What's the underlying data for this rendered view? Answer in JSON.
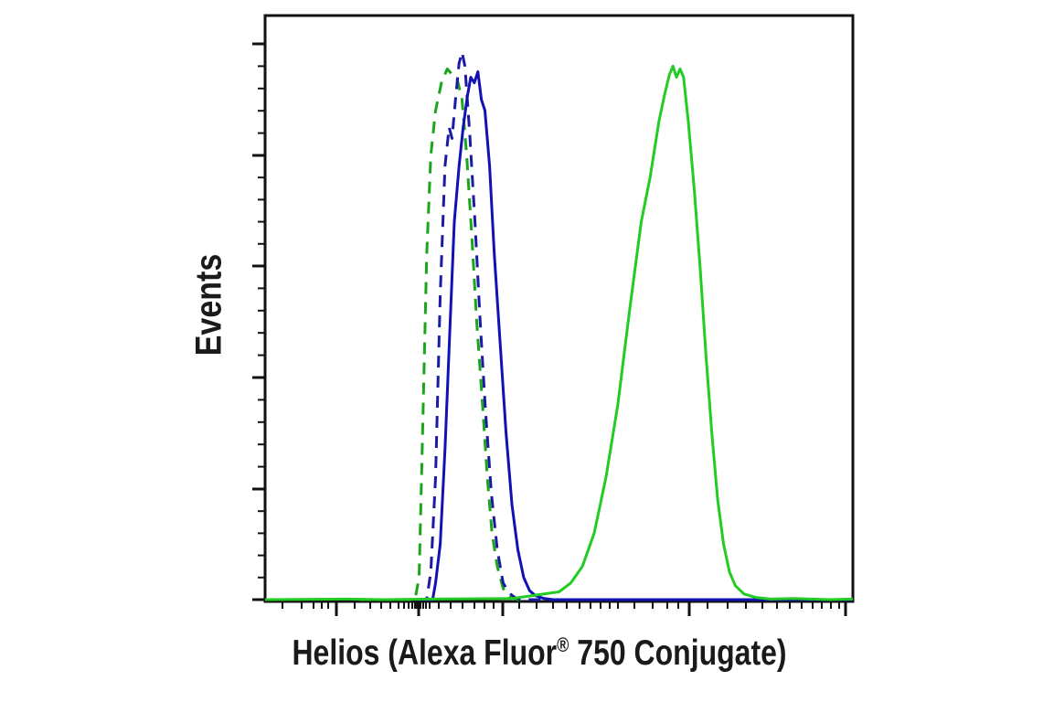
{
  "chart_data": {
    "type": "line",
    "title": "",
    "xlabel": "Helios (Alexa Fluor",
    "xlabel_sup": "®",
    "xlabel_rest": " 750 Conjugate)",
    "ylabel": "Events",
    "x_scale": "log (biexponential flow cytometry axis, tick labels not printed)",
    "grid": false,
    "legend": "none",
    "series": [
      {
        "color": "#1aa51a",
        "dash": "dashed",
        "points": [
          [
            0.16,
            0
          ],
          [
            0.255,
            0
          ],
          [
            0.262,
            0.04
          ],
          [
            0.268,
            0.3
          ],
          [
            0.275,
            0.62
          ],
          [
            0.282,
            0.8
          ],
          [
            0.29,
            0.88
          ],
          [
            0.3,
            0.93
          ],
          [
            0.31,
            0.955
          ],
          [
            0.318,
            0.945
          ],
          [
            0.326,
            0.94
          ],
          [
            0.335,
            0.9
          ],
          [
            0.343,
            0.8
          ],
          [
            0.352,
            0.65
          ],
          [
            0.36,
            0.5
          ],
          [
            0.37,
            0.35
          ],
          [
            0.378,
            0.22
          ],
          [
            0.386,
            0.12
          ],
          [
            0.395,
            0.06
          ],
          [
            0.405,
            0.02
          ],
          [
            0.415,
            0.005
          ],
          [
            0.43,
            0
          ],
          [
            0.55,
            0
          ]
        ]
      },
      {
        "color": "#1a1aa5",
        "dash": "dashed",
        "points": [
          [
            0.26,
            0
          ],
          [
            0.275,
            0
          ],
          [
            0.282,
            0.05
          ],
          [
            0.29,
            0.22
          ],
          [
            0.298,
            0.55
          ],
          [
            0.306,
            0.78
          ],
          [
            0.313,
            0.85
          ],
          [
            0.318,
            0.83
          ],
          [
            0.324,
            0.9
          ],
          [
            0.33,
            0.965
          ],
          [
            0.335,
            0.985
          ],
          [
            0.34,
            0.96
          ],
          [
            0.348,
            0.84
          ],
          [
            0.357,
            0.68
          ],
          [
            0.366,
            0.5
          ],
          [
            0.375,
            0.34
          ],
          [
            0.385,
            0.19
          ],
          [
            0.395,
            0.09
          ],
          [
            0.405,
            0.03
          ],
          [
            0.415,
            0.012
          ],
          [
            0.425,
            0.004
          ],
          [
            0.435,
            0
          ],
          [
            0.55,
            0
          ]
        ]
      },
      {
        "color": "#1111b5",
        "dash": "solid",
        "points": [
          [
            0.265,
            0
          ],
          [
            0.285,
            0
          ],
          [
            0.29,
            0.03
          ],
          [
            0.298,
            0.1
          ],
          [
            0.306,
            0.27
          ],
          [
            0.315,
            0.5
          ],
          [
            0.322,
            0.68
          ],
          [
            0.33,
            0.78
          ],
          [
            0.337,
            0.85
          ],
          [
            0.344,
            0.905
          ],
          [
            0.35,
            0.94
          ],
          [
            0.356,
            0.93
          ],
          [
            0.362,
            0.95
          ],
          [
            0.368,
            0.9
          ],
          [
            0.374,
            0.88
          ],
          [
            0.382,
            0.78
          ],
          [
            0.39,
            0.62
          ],
          [
            0.4,
            0.46
          ],
          [
            0.41,
            0.3
          ],
          [
            0.42,
            0.17
          ],
          [
            0.43,
            0.09
          ],
          [
            0.44,
            0.04
          ],
          [
            0.45,
            0.016
          ],
          [
            0.46,
            0.007
          ],
          [
            0.475,
            0.002
          ],
          [
            0.49,
            0
          ],
          [
            1.0,
            0
          ]
        ]
      },
      {
        "color": "#22cc22",
        "dash": "solid",
        "points": [
          [
            0.0,
            0
          ],
          [
            0.14,
            0.001
          ],
          [
            0.2,
            0
          ],
          [
            0.28,
            0.001
          ],
          [
            0.42,
            0.002
          ],
          [
            0.46,
            0.008
          ],
          [
            0.5,
            0.014
          ],
          [
            0.52,
            0.03
          ],
          [
            0.54,
            0.06
          ],
          [
            0.56,
            0.12
          ],
          [
            0.58,
            0.22
          ],
          [
            0.6,
            0.35
          ],
          [
            0.62,
            0.52
          ],
          [
            0.64,
            0.68
          ],
          [
            0.655,
            0.76
          ],
          [
            0.67,
            0.86
          ],
          [
            0.68,
            0.91
          ],
          [
            0.688,
            0.945
          ],
          [
            0.694,
            0.96
          ],
          [
            0.7,
            0.94
          ],
          [
            0.706,
            0.955
          ],
          [
            0.712,
            0.94
          ],
          [
            0.72,
            0.86
          ],
          [
            0.73,
            0.74
          ],
          [
            0.74,
            0.6
          ],
          [
            0.75,
            0.44
          ],
          [
            0.76,
            0.3
          ],
          [
            0.77,
            0.18
          ],
          [
            0.78,
            0.1
          ],
          [
            0.79,
            0.05
          ],
          [
            0.8,
            0.025
          ],
          [
            0.815,
            0.01
          ],
          [
            0.835,
            0.004
          ],
          [
            0.86,
            0.001
          ],
          [
            0.9,
            0.002
          ],
          [
            0.96,
            0
          ],
          [
            1.0,
            0.001
          ]
        ]
      }
    ]
  }
}
